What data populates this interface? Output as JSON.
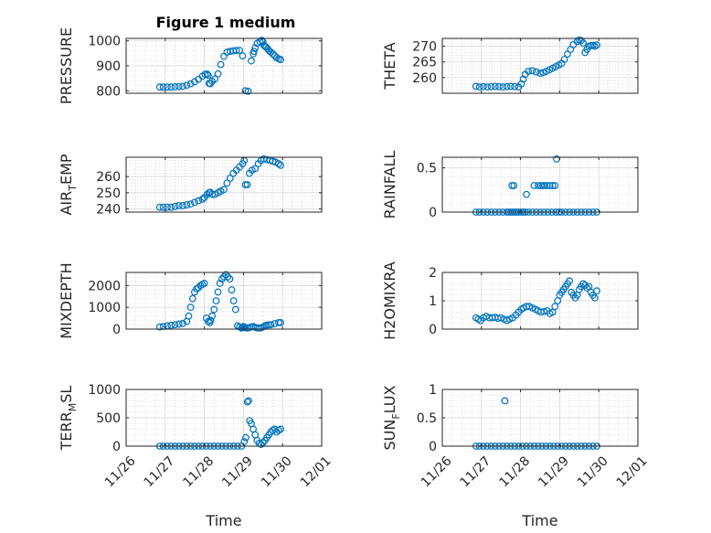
{
  "figure": {
    "title": "Figure 1 medium",
    "marker_color": "#0072BD",
    "xlabel": "Time",
    "x_ticks": [
      "11/26",
      "11/27",
      "11/28",
      "11/29",
      "11/30",
      "12/01"
    ],
    "x_range_days": [
      26,
      31
    ]
  },
  "chart_data": [
    {
      "type": "scatter",
      "id": "pressure",
      "ylabel": "PRESSURE",
      "yticks": [
        800,
        900,
        1000
      ],
      "ylim": [
        790,
        1010
      ],
      "grid": true,
      "x": [
        26.86,
        26.95,
        27.05,
        27.15,
        27.25,
        27.35,
        27.45,
        27.55,
        27.65,
        27.75,
        27.85,
        27.95,
        28.02,
        28.07,
        28.1,
        28.12,
        28.15,
        28.2,
        28.27,
        28.35,
        28.42,
        28.5,
        28.58,
        28.66,
        28.74,
        28.82,
        28.9,
        28.98,
        29.05,
        29.12,
        29.2,
        29.25,
        29.27,
        29.3,
        29.35,
        29.42,
        29.47,
        29.5,
        29.52,
        29.55,
        29.58,
        29.62,
        29.66,
        29.7,
        29.75,
        29.8,
        29.85,
        29.9,
        29.95
      ],
      "y": [
        815,
        815,
        815,
        815,
        816,
        817,
        818,
        822,
        828,
        836,
        846,
        858,
        866,
        867,
        862,
        830,
        828,
        838,
        847,
        868,
        905,
        938,
        955,
        958,
        960,
        962,
        962,
        940,
        800,
        798,
        920,
        948,
        958,
        972,
        990,
        997,
        1002,
        996,
        982,
        978,
        975,
        968,
        960,
        955,
        948,
        940,
        933,
        928,
        925
      ]
    },
    {
      "type": "scatter",
      "id": "theta",
      "ylabel": "THETA",
      "yticks": [
        260,
        265,
        270
      ],
      "ylim": [
        255,
        272.5
      ],
      "grid": true,
      "x": [
        26.86,
        26.95,
        27.05,
        27.15,
        27.25,
        27.35,
        27.45,
        27.55,
        27.65,
        27.75,
        27.85,
        27.95,
        28.02,
        28.07,
        28.12,
        28.2,
        28.3,
        28.4,
        28.5,
        28.58,
        28.66,
        28.74,
        28.82,
        28.9,
        28.98,
        29.05,
        29.12,
        29.2,
        29.28,
        29.35,
        29.45,
        29.5,
        29.55,
        29.6,
        29.65,
        29.7,
        29.75,
        29.8,
        29.85,
        29.9,
        29.95
      ],
      "y": [
        257.2,
        257.0,
        257.1,
        257.0,
        257.1,
        257.2,
        257.1,
        257.0,
        257.1,
        257.2,
        257.1,
        257.0,
        258.0,
        259.5,
        261.0,
        262.0,
        262.2,
        261.8,
        261.4,
        261.6,
        262.0,
        262.5,
        263.0,
        263.5,
        264.0,
        264.5,
        265.8,
        267.5,
        269.0,
        270.5,
        271.5,
        272.0,
        271.8,
        271.0,
        268.0,
        269.0,
        270.0,
        270.2,
        270.3,
        270.0,
        270.4
      ]
    },
    {
      "type": "scatter",
      "id": "airtemp",
      "ylabel_main": "AIR",
      "ylabel_sub": "T",
      "ylabel_tail": "EMP",
      "yticks": [
        240,
        250,
        260
      ],
      "ylim": [
        238,
        272
      ],
      "grid": true,
      "x": [
        26.86,
        26.95,
        27.05,
        27.15,
        27.25,
        27.35,
        27.45,
        27.55,
        27.65,
        27.75,
        27.85,
        27.95,
        28.0,
        28.07,
        28.12,
        28.15,
        28.2,
        28.27,
        28.35,
        28.42,
        28.5,
        28.58,
        28.66,
        28.74,
        28.82,
        28.9,
        28.98,
        29.02,
        29.05,
        29.1,
        29.15,
        29.22,
        29.3,
        29.38,
        29.45,
        29.52,
        29.6,
        29.68,
        29.75,
        29.82,
        29.9,
        29.95
      ],
      "y": [
        241,
        241,
        241,
        241,
        241.5,
        242,
        242,
        242.5,
        243,
        244,
        245,
        246,
        247,
        249,
        250,
        250.3,
        249,
        249,
        250,
        251,
        252,
        256,
        259,
        262,
        264,
        266,
        268,
        270,
        255,
        255,
        262,
        264,
        265,
        268,
        270,
        271,
        270.5,
        270,
        269.5,
        269,
        268,
        267
      ]
    },
    {
      "type": "scatter",
      "id": "rainfall",
      "ylabel": "RAINFALL",
      "yticks": [
        0,
        0.5
      ],
      "ylim": [
        0,
        0.62
      ],
      "grid": true,
      "x": [
        26.86,
        26.95,
        27.05,
        27.15,
        27.25,
        27.35,
        27.45,
        27.55,
        27.65,
        27.7,
        27.75,
        27.8,
        27.85,
        27.9,
        27.95,
        28.02,
        28.07,
        28.12,
        28.2,
        28.3,
        28.4,
        28.5,
        28.6,
        28.7,
        28.8,
        28.9,
        28.98,
        29.05,
        29.15,
        29.25,
        29.35,
        29.45,
        29.55,
        29.65,
        29.75,
        29.85,
        29.95,
        27.78,
        27.83,
        28.15,
        28.35,
        28.45,
        28.52,
        28.57,
        28.62,
        28.68,
        28.75,
        28.82,
        28.88,
        28.92
      ],
      "y": [
        0,
        0,
        0,
        0,
        0,
        0,
        0,
        0,
        0,
        0,
        0,
        0,
        0,
        0,
        0,
        0,
        0,
        0,
        0,
        0,
        0,
        0,
        0,
        0,
        0,
        0,
        0,
        0,
        0,
        0,
        0,
        0,
        0,
        0,
        0,
        0,
        0,
        0.3,
        0.3,
        0.2,
        0.3,
        0.3,
        0.3,
        0.3,
        0.3,
        0.3,
        0.3,
        0.3,
        0.3,
        0.6
      ]
    },
    {
      "type": "scatter",
      "id": "mixdepth",
      "ylabel": "MIXDEPTH",
      "yticks": [
        0,
        1000,
        2000
      ],
      "ylim": [
        0,
        2600
      ],
      "grid": true,
      "x": [
        26.86,
        26.95,
        27.05,
        27.15,
        27.25,
        27.35,
        27.45,
        27.55,
        27.6,
        27.65,
        27.7,
        27.75,
        27.8,
        27.85,
        27.9,
        27.95,
        28.0,
        28.05,
        28.1,
        28.14,
        28.16,
        28.2,
        28.25,
        28.3,
        28.35,
        28.4,
        28.45,
        28.5,
        28.55,
        28.6,
        28.65,
        28.7,
        28.75,
        28.8,
        28.85,
        28.9,
        28.95,
        28.98,
        29.0,
        29.02,
        29.05,
        29.1,
        29.15,
        29.2,
        29.25,
        29.3,
        29.35,
        29.4,
        29.45,
        29.5,
        29.55,
        29.6,
        29.65,
        29.7,
        29.8,
        29.9,
        29.95
      ],
      "y": [
        100,
        120,
        150,
        180,
        200,
        230,
        260,
        350,
        600,
        1000,
        1400,
        1700,
        1850,
        1900,
        2000,
        2050,
        2100,
        500,
        350,
        300,
        400,
        600,
        900,
        1300,
        1700,
        2100,
        2300,
        2400,
        2500,
        2400,
        2300,
        1800,
        1300,
        900,
        150,
        100,
        50,
        80,
        120,
        100,
        60,
        50,
        70,
        100,
        120,
        80,
        60,
        50,
        60,
        100,
        150,
        180,
        200,
        200,
        250,
        300,
        300
      ]
    },
    {
      "type": "scatter",
      "id": "h2omixra",
      "ylabel": "H2OMIXRA",
      "yticks": [
        0,
        1,
        2
      ],
      "ylim": [
        0,
        2
      ],
      "grid": true,
      "x": [
        26.86,
        26.92,
        26.98,
        27.05,
        27.12,
        27.2,
        27.28,
        27.35,
        27.42,
        27.5,
        27.58,
        27.65,
        27.72,
        27.8,
        27.88,
        27.95,
        28.02,
        28.08,
        28.15,
        28.22,
        28.3,
        28.38,
        28.45,
        28.52,
        28.6,
        28.68,
        28.75,
        28.82,
        28.88,
        28.95,
        29.0,
        29.05,
        29.1,
        29.15,
        29.2,
        29.25,
        29.3,
        29.35,
        29.4,
        29.45,
        29.5,
        29.55,
        29.6,
        29.65,
        29.7,
        29.75,
        29.8,
        29.85,
        29.9,
        29.95
      ],
      "y": [
        0.4,
        0.35,
        0.3,
        0.4,
        0.45,
        0.4,
        0.4,
        0.42,
        0.38,
        0.4,
        0.35,
        0.3,
        0.35,
        0.4,
        0.5,
        0.6,
        0.7,
        0.75,
        0.8,
        0.8,
        0.75,
        0.7,
        0.65,
        0.6,
        0.62,
        0.65,
        0.55,
        0.6,
        0.8,
        1.0,
        1.2,
        1.3,
        1.4,
        1.5,
        1.6,
        1.7,
        1.3,
        1.2,
        1.1,
        1.2,
        1.4,
        1.5,
        1.6,
        1.55,
        1.45,
        1.5,
        1.3,
        1.2,
        1.1,
        1.35
      ]
    },
    {
      "type": "scatter",
      "id": "terrmsl",
      "ylabel_main": "TERR",
      "ylabel_sub": "M",
      "ylabel_tail": "SL",
      "yticks": [
        0,
        500,
        1000
      ],
      "ylim": [
        0,
        1000
      ],
      "grid": true,
      "x": [
        26.86,
        26.95,
        27.05,
        27.15,
        27.25,
        27.35,
        27.45,
        27.55,
        27.65,
        27.75,
        27.85,
        27.95,
        28.05,
        28.15,
        28.25,
        28.35,
        28.45,
        28.55,
        28.65,
        28.75,
        28.85,
        28.95,
        29.02,
        29.06,
        29.1,
        29.13,
        29.16,
        29.2,
        29.25,
        29.3,
        29.35,
        29.4,
        29.45,
        29.5,
        29.55,
        29.6,
        29.65,
        29.7,
        29.75,
        29.8,
        29.85,
        29.9,
        29.95
      ],
      "y": [
        0,
        0,
        0,
        0,
        0,
        0,
        0,
        0,
        0,
        0,
        0,
        0,
        0,
        0,
        0,
        0,
        0,
        0,
        0,
        0,
        0,
        0,
        80,
        150,
        780,
        800,
        450,
        400,
        300,
        200,
        100,
        50,
        30,
        60,
        100,
        150,
        200,
        250,
        280,
        300,
        250,
        280,
        300
      ]
    },
    {
      "type": "scatter",
      "id": "sunflux",
      "ylabel_main": "SUN",
      "ylabel_sub": "F",
      "ylabel_tail": "LUX",
      "yticks": [
        0,
        0.5,
        1
      ],
      "ylim": [
        0,
        1
      ],
      "grid": true,
      "x": [
        26.86,
        26.95,
        27.05,
        27.15,
        27.25,
        27.35,
        27.45,
        27.55,
        27.65,
        27.75,
        27.85,
        27.95,
        28.05,
        28.15,
        28.25,
        28.35,
        28.45,
        28.55,
        28.65,
        28.75,
        28.85,
        28.95,
        29.05,
        29.15,
        29.25,
        29.35,
        29.45,
        29.55,
        29.65,
        29.75,
        29.85,
        29.95,
        27.6
      ],
      "y": [
        0,
        0,
        0,
        0,
        0,
        0,
        0,
        0,
        0,
        0,
        0,
        0,
        0,
        0,
        0,
        0,
        0,
        0,
        0,
        0,
        0,
        0,
        0,
        0,
        0,
        0,
        0,
        0,
        0,
        0,
        0,
        0,
        0.8
      ]
    }
  ]
}
